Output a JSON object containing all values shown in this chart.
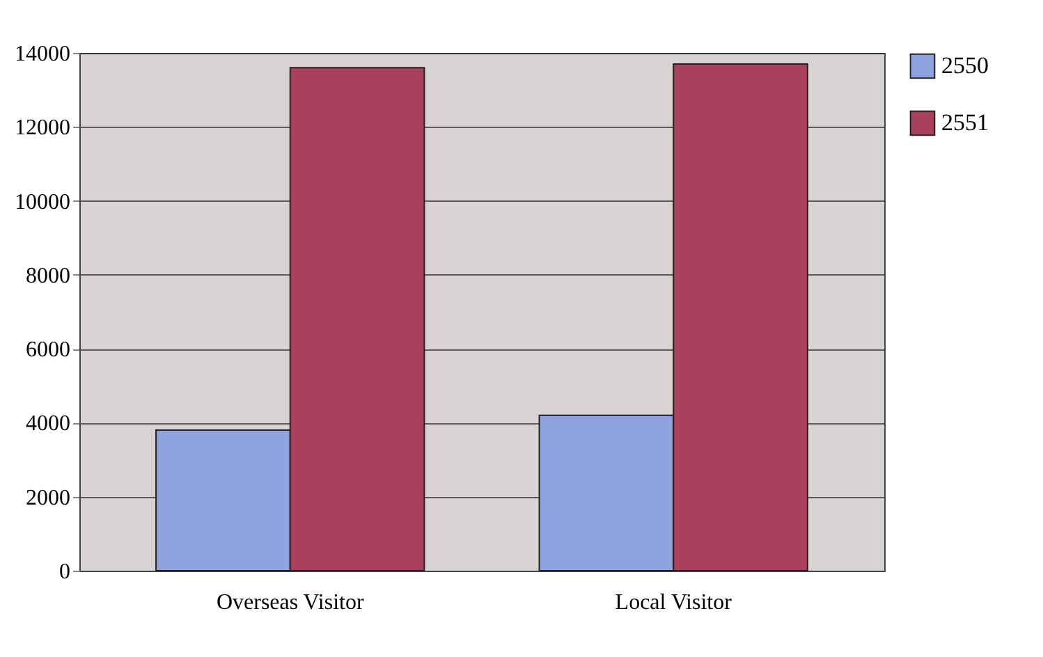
{
  "chart_data": {
    "type": "bar",
    "categories": [
      "Overseas Visitor",
      "Local Visitor"
    ],
    "series": [
      {
        "name": "2550",
        "color": "#8fa3e0",
        "values": [
          3800,
          4200
        ]
      },
      {
        "name": "2551",
        "color": "#a8405e",
        "values": [
          13600,
          13700
        ]
      }
    ],
    "ylim": [
      0,
      14000
    ],
    "yticks": [
      0,
      2000,
      4000,
      6000,
      8000,
      10000,
      12000,
      14000
    ],
    "grid": "y",
    "legend": "right"
  }
}
